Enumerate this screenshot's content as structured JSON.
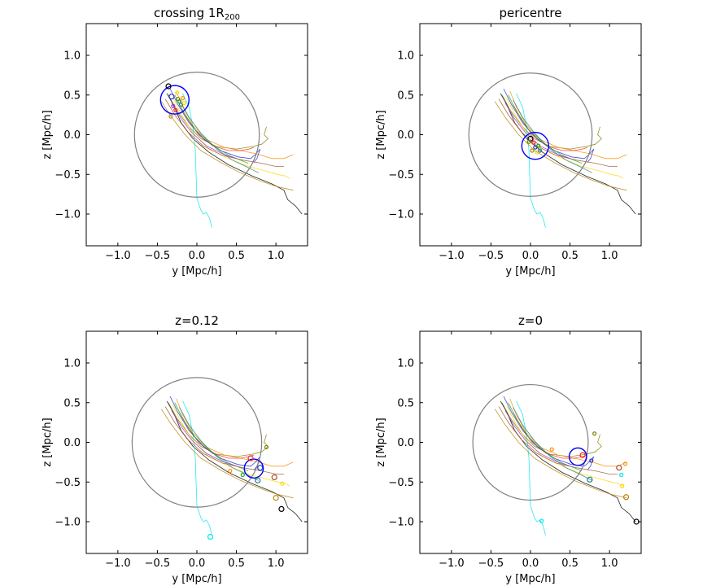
{
  "figure": {
    "colors": {
      "circle_r200": "#808080",
      "circle_group": "#0000ff",
      "traj_cyan": "#00e5ee",
      "traj_black": "#000000",
      "traj_olive": "#808000",
      "traj_gold": "#b8860b",
      "traj_yellow": "#ffd700",
      "traj_orange": "#ff8c00",
      "traj_red": "#ff2020",
      "traj_blue": "#2233cc",
      "traj_green": "#22aa22",
      "traj_teal": "#208080",
      "traj_brown": "#a0522d",
      "traj_purple": "#9933cc"
    }
  },
  "chart_data": [
    {
      "type": "scatter",
      "title_prefix": "crossing 1R",
      "title_sub": "200",
      "xlabel": "y [Mpc/h]",
      "ylabel": "z [Mpc/h]",
      "xlim": [
        -1.4,
        1.4
      ],
      "ylim": [
        -1.4,
        1.4
      ],
      "xticks": [
        -1.0,
        -0.5,
        0.0,
        0.5,
        1.0
      ],
      "xtick_labels": [
        "−1.0",
        "−0.5",
        "0.0",
        "0.5",
        "1.0"
      ],
      "yticks": [
        -1.0,
        -0.5,
        0.0,
        0.5,
        1.0
      ],
      "ytick_labels": [
        "−1.0",
        "−0.5",
        "0.0",
        "0.5",
        "1.0"
      ],
      "r200_circle": {
        "center": [
          0.0,
          0.0
        ],
        "radius": 0.79
      },
      "group_circle": {
        "center": [
          -0.28,
          0.44
        ],
        "radius": 0.18
      },
      "markers": [
        {
          "y": -0.36,
          "z": 0.61,
          "color": "traj_black",
          "size": 3
        },
        {
          "y": -0.32,
          "z": 0.48,
          "color": "traj_blue",
          "size": 3
        },
        {
          "y": -0.3,
          "z": 0.36,
          "color": "traj_purple",
          "size": 2
        },
        {
          "y": -0.27,
          "z": 0.31,
          "color": "traj_red",
          "size": 2
        },
        {
          "y": -0.25,
          "z": 0.53,
          "color": "traj_yellow",
          "size": 2
        },
        {
          "y": -0.24,
          "z": 0.45,
          "color": "traj_olive",
          "size": 2
        },
        {
          "y": -0.22,
          "z": 0.42,
          "color": "traj_green",
          "size": 2
        },
        {
          "y": -0.33,
          "z": 0.23,
          "color": "traj_gold",
          "size": 2
        },
        {
          "y": -0.2,
          "z": 0.38,
          "color": "traj_teal",
          "size": 2
        },
        {
          "y": -0.18,
          "z": 0.46,
          "color": "traj_orange",
          "size": 2
        },
        {
          "y": -0.16,
          "z": 0.4,
          "color": "traj_yellow",
          "size": 2
        }
      ]
    },
    {
      "type": "scatter",
      "title_prefix": "pericentre",
      "title_sub": "",
      "xlabel": "y [Mpc/h]",
      "ylabel": "z [Mpc/h]",
      "xlim": [
        -1.4,
        1.4
      ],
      "ylim": [
        -1.4,
        1.4
      ],
      "xticks": [
        -1.0,
        -0.5,
        0.0,
        0.5,
        1.0
      ],
      "xtick_labels": [
        "−1.0",
        "−0.5",
        "0.0",
        "0.5",
        "1.0"
      ],
      "yticks": [
        -1.0,
        -0.5,
        0.0,
        0.5,
        1.0
      ],
      "ytick_labels": [
        "−1.0",
        "−0.5",
        "0.0",
        "0.5",
        "1.0"
      ],
      "r200_circle": {
        "center": [
          0.0,
          0.0
        ],
        "radius": 0.78
      },
      "group_circle": {
        "center": [
          0.06,
          -0.14
        ],
        "radius": 0.17
      },
      "markers": [
        {
          "y": 0.0,
          "z": -0.05,
          "color": "traj_black",
          "size": 3
        },
        {
          "y": 0.04,
          "z": -0.1,
          "color": "traj_red",
          "size": 2
        },
        {
          "y": 0.06,
          "z": -0.16,
          "color": "traj_blue",
          "size": 2
        },
        {
          "y": 0.1,
          "z": -0.14,
          "color": "traj_green",
          "size": 2
        },
        {
          "y": -0.02,
          "z": -0.09,
          "color": "traj_olive",
          "size": 2
        },
        {
          "y": 0.02,
          "z": -0.2,
          "color": "traj_gold",
          "size": 2
        },
        {
          "y": 0.08,
          "z": -0.22,
          "color": "traj_yellow",
          "size": 2
        },
        {
          "y": 0.12,
          "z": -0.2,
          "color": "traj_teal",
          "size": 2
        }
      ]
    },
    {
      "type": "scatter",
      "title_prefix": "z=0.12",
      "title_sub": "",
      "xlabel": "y [Mpc/h]",
      "ylabel": "z [Mpc/h]",
      "xlim": [
        -1.4,
        1.4
      ],
      "ylim": [
        -1.4,
        1.4
      ],
      "xticks": [
        -1.0,
        -0.5,
        0.0,
        0.5,
        1.0
      ],
      "xtick_labels": [
        "−1.0",
        "−0.5",
        "0.0",
        "0.5",
        "1.0"
      ],
      "yticks": [
        -1.0,
        -0.5,
        0.0,
        0.5,
        1.0
      ],
      "ytick_labels": [
        "−1.0",
        "−0.5",
        "0.0",
        "0.5",
        "1.0"
      ],
      "r200_circle": {
        "center": [
          0.0,
          0.0
        ],
        "radius": 0.82
      },
      "group_circle": {
        "center": [
          0.72,
          -0.33
        ],
        "radius": 0.12
      },
      "markers": [
        {
          "y": 0.68,
          "z": -0.2,
          "color": "traj_red",
          "size": 3
        },
        {
          "y": 0.8,
          "z": -0.32,
          "color": "traj_blue",
          "size": 3
        },
        {
          "y": 0.88,
          "z": -0.06,
          "color": "traj_olive",
          "size": 2
        },
        {
          "y": 0.58,
          "z": -0.41,
          "color": "traj_green",
          "size": 2
        },
        {
          "y": 0.77,
          "z": -0.48,
          "color": "traj_teal",
          "size": 3
        },
        {
          "y": 0.98,
          "z": -0.44,
          "color": "traj_brown",
          "size": 3
        },
        {
          "y": 1.0,
          "z": -0.7,
          "color": "traj_gold",
          "size": 3
        },
        {
          "y": 1.07,
          "z": -0.84,
          "color": "traj_black",
          "size": 3
        },
        {
          "y": 1.08,
          "z": -0.52,
          "color": "traj_yellow",
          "size": 2
        },
        {
          "y": 0.42,
          "z": -0.36,
          "color": "traj_orange",
          "size": 2
        },
        {
          "y": 0.17,
          "z": -1.19,
          "color": "traj_cyan",
          "size": 3
        }
      ]
    },
    {
      "type": "scatter",
      "title_prefix": "z=0",
      "title_sub": "",
      "xlabel": "y [Mpc/h]",
      "ylabel": "z [Mpc/h]",
      "xlim": [
        -1.4,
        1.4
      ],
      "ylim": [
        -1.4,
        1.4
      ],
      "xticks": [
        -1.0,
        -0.5,
        0.0,
        0.5,
        1.0
      ],
      "xtick_labels": [
        "−1.0",
        "−0.5",
        "0.0",
        "0.5",
        "1.0"
      ],
      "yticks": [
        -1.0,
        -0.5,
        0.0,
        0.5,
        1.0
      ],
      "ytick_labels": [
        "−1.0",
        "−0.5",
        "0.0",
        "0.5",
        "1.0"
      ],
      "r200_circle": {
        "center": [
          0.0,
          0.0
        ],
        "radius": 0.73
      },
      "group_circle": {
        "center": [
          0.6,
          -0.18
        ],
        "radius": 0.11
      },
      "markers": [
        {
          "y": 0.27,
          "z": -0.09,
          "color": "traj_orange",
          "size": 2
        },
        {
          "y": 0.66,
          "z": -0.16,
          "color": "traj_red",
          "size": 3
        },
        {
          "y": 0.77,
          "z": -0.23,
          "color": "traj_blue",
          "size": 2
        },
        {
          "y": 0.81,
          "z": 0.11,
          "color": "traj_olive",
          "size": 2
        },
        {
          "y": 0.75,
          "z": -0.47,
          "color": "traj_teal",
          "size": 3
        },
        {
          "y": 1.12,
          "z": -0.32,
          "color": "traj_brown",
          "size": 3
        },
        {
          "y": 1.15,
          "z": -0.41,
          "color": "traj_cyan",
          "size": 2
        },
        {
          "y": 1.16,
          "z": -0.55,
          "color": "traj_yellow",
          "size": 2
        },
        {
          "y": 1.21,
          "z": -0.69,
          "color": "traj_gold",
          "size": 3
        },
        {
          "y": 1.34,
          "z": -1.0,
          "color": "traj_black",
          "size": 3
        },
        {
          "y": 1.2,
          "z": -0.27,
          "color": "traj_orange",
          "size": 2
        },
        {
          "y": 0.14,
          "z": -0.99,
          "color": "traj_cyan",
          "size": 2
        }
      ]
    }
  ],
  "trajectories": [
    {
      "color": "traj_black",
      "points": [
        [
          -0.38,
          0.52
        ],
        [
          -0.3,
          0.38
        ],
        [
          -0.2,
          0.15
        ],
        [
          -0.05,
          -0.05
        ],
        [
          0.15,
          -0.22
        ],
        [
          0.4,
          -0.38
        ],
        [
          0.7,
          -0.52
        ],
        [
          0.95,
          -0.62
        ],
        [
          1.1,
          -0.7
        ],
        [
          1.15,
          -0.82
        ],
        [
          1.25,
          -0.9
        ],
        [
          1.33,
          -1.0
        ]
      ]
    },
    {
      "color": "traj_cyan",
      "points": [
        [
          -0.18,
          0.52
        ],
        [
          -0.1,
          0.35
        ],
        [
          -0.05,
          0.1
        ],
        [
          -0.02,
          -0.2
        ],
        [
          -0.01,
          -0.5
        ],
        [
          0.0,
          -0.8
        ],
        [
          0.05,
          -0.95
        ],
        [
          0.08,
          -1.0
        ],
        [
          0.12,
          -0.98
        ],
        [
          0.16,
          -1.05
        ],
        [
          0.19,
          -1.17
        ]
      ]
    },
    {
      "color": "traj_olive",
      "points": [
        [
          -0.36,
          0.5
        ],
        [
          -0.25,
          0.3
        ],
        [
          -0.1,
          0.1
        ],
        [
          0.05,
          -0.05
        ],
        [
          0.25,
          -0.15
        ],
        [
          0.5,
          -0.18
        ],
        [
          0.7,
          -0.15
        ],
        [
          0.82,
          -0.12
        ],
        [
          0.9,
          -0.05
        ],
        [
          0.85,
          0.0
        ],
        [
          0.88,
          0.1
        ]
      ]
    },
    {
      "color": "traj_gold",
      "points": [
        [
          -0.45,
          0.42
        ],
        [
          -0.32,
          0.22
        ],
        [
          -0.15,
          0.0
        ],
        [
          0.05,
          -0.2
        ],
        [
          0.3,
          -0.35
        ],
        [
          0.55,
          -0.48
        ],
        [
          0.8,
          -0.58
        ],
        [
          1.0,
          -0.65
        ],
        [
          1.13,
          -0.68
        ],
        [
          1.22,
          -0.7
        ]
      ]
    },
    {
      "color": "traj_yellow",
      "points": [
        [
          -0.3,
          0.46
        ],
        [
          -0.2,
          0.26
        ],
        [
          -0.05,
          0.02
        ],
        [
          0.15,
          -0.18
        ],
        [
          0.4,
          -0.3
        ],
        [
          0.65,
          -0.4
        ],
        [
          0.88,
          -0.46
        ],
        [
          1.02,
          -0.5
        ],
        [
          1.12,
          -0.52
        ],
        [
          1.17,
          -0.55
        ]
      ]
    },
    {
      "color": "traj_orange",
      "points": [
        [
          -0.26,
          0.55
        ],
        [
          -0.18,
          0.35
        ],
        [
          -0.05,
          0.12
        ],
        [
          0.12,
          -0.06
        ],
        [
          0.35,
          -0.16
        ],
        [
          0.55,
          -0.2
        ],
        [
          0.75,
          -0.24
        ],
        [
          0.95,
          -0.3
        ],
        [
          1.1,
          -0.3
        ],
        [
          1.22,
          -0.25
        ]
      ]
    },
    {
      "color": "traj_red",
      "points": [
        [
          -0.22,
          0.38
        ],
        [
          -0.12,
          0.2
        ],
        [
          0.02,
          0.0
        ],
        [
          0.2,
          -0.14
        ],
        [
          0.4,
          -0.2
        ],
        [
          0.55,
          -0.2
        ],
        [
          0.66,
          -0.18
        ],
        [
          0.72,
          -0.16
        ]
      ]
    },
    {
      "color": "traj_blue",
      "points": [
        [
          -0.34,
          0.58
        ],
        [
          -0.24,
          0.38
        ],
        [
          -0.1,
          0.15
        ],
        [
          0.08,
          -0.05
        ],
        [
          0.3,
          -0.2
        ],
        [
          0.52,
          -0.28
        ],
        [
          0.68,
          -0.3
        ],
        [
          0.74,
          -0.25
        ],
        [
          0.8,
          -0.18
        ],
        [
          0.76,
          -0.3
        ],
        [
          0.72,
          -0.35
        ]
      ]
    },
    {
      "color": "traj_green",
      "points": [
        [
          -0.28,
          0.5
        ],
        [
          -0.18,
          0.3
        ],
        [
          -0.02,
          0.06
        ],
        [
          0.18,
          -0.12
        ],
        [
          0.4,
          -0.26
        ],
        [
          0.55,
          -0.32
        ],
        [
          0.65,
          -0.36
        ]
      ]
    },
    {
      "color": "traj_teal",
      "points": [
        [
          -0.22,
          0.44
        ],
        [
          -0.1,
          0.22
        ],
        [
          0.05,
          0.02
        ],
        [
          0.25,
          -0.18
        ],
        [
          0.45,
          -0.32
        ],
        [
          0.62,
          -0.4
        ],
        [
          0.74,
          -0.46
        ],
        [
          0.78,
          -0.48
        ]
      ]
    },
    {
      "color": "traj_brown",
      "points": [
        [
          -0.4,
          0.45
        ],
        [
          -0.28,
          0.25
        ],
        [
          -0.12,
          0.04
        ],
        [
          0.08,
          -0.14
        ],
        [
          0.32,
          -0.26
        ],
        [
          0.58,
          -0.32
        ],
        [
          0.82,
          -0.36
        ],
        [
          1.0,
          -0.4
        ],
        [
          1.1,
          -0.4
        ]
      ]
    },
    {
      "color": "traj_purple",
      "points": [
        [
          -0.32,
          0.4
        ],
        [
          -0.2,
          0.2
        ],
        [
          -0.06,
          0.02
        ],
        [
          0.12,
          -0.14
        ],
        [
          0.32,
          -0.24
        ],
        [
          0.5,
          -0.3
        ]
      ]
    }
  ]
}
